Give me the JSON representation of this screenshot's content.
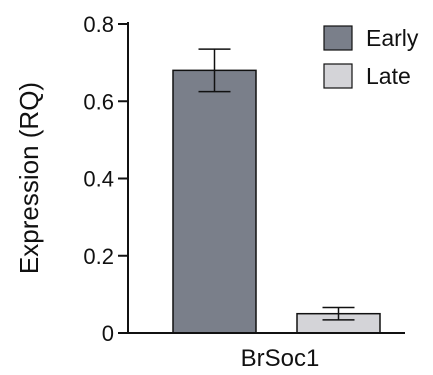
{
  "chart_data": {
    "type": "bar",
    "categories": [
      "BrSoc1"
    ],
    "series": [
      {
        "name": "Early",
        "values": [
          0.68
        ],
        "error": [
          0.055
        ],
        "color": "#7a7f8a"
      },
      {
        "name": "Late",
        "values": [
          0.05
        ],
        "error": [
          0.016
        ],
        "color": "#d4d4d8"
      }
    ],
    "ylabel": "Expression (RQ)",
    "xlabel": "",
    "ylim": [
      0,
      0.8
    ],
    "yticks": [
      0,
      0.2,
      0.4,
      0.6,
      0.8
    ],
    "ytick_labels": [
      "0",
      "0.2",
      "0.4",
      "0.6",
      "0.8"
    ],
    "grid": false,
    "legend_position": "top-right"
  }
}
